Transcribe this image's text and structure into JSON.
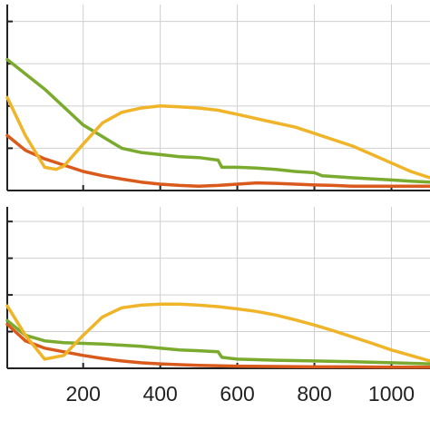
{
  "chart_data": [
    {
      "type": "line",
      "title": "",
      "xlabel": "",
      "ylabel": "",
      "xlim": [
        3,
        1100
      ],
      "ylim": [
        0,
        4.4
      ],
      "x_ticks": [
        200,
        400,
        600,
        800,
        1000
      ],
      "y_gridlines": [
        1,
        2,
        3,
        4
      ],
      "grid": true,
      "series": [
        {
          "color": "#7aab2e",
          "x": [
            3,
            100,
            200,
            300,
            350,
            400,
            450,
            500,
            550,
            560,
            600,
            650,
            700,
            750,
            800,
            820,
            900,
            1000,
            1050,
            1100
          ],
          "y": [
            3.1,
            2.4,
            1.55,
            1.0,
            0.9,
            0.85,
            0.8,
            0.78,
            0.72,
            0.55,
            0.55,
            0.53,
            0.5,
            0.45,
            0.42,
            0.35,
            0.3,
            0.25,
            0.22,
            0.2
          ]
        },
        {
          "color": "#d95a1c",
          "x": [
            3,
            50,
            100,
            150,
            200,
            250,
            300,
            350,
            400,
            450,
            500,
            550,
            600,
            650,
            700,
            750,
            800,
            850,
            900,
            1000,
            1100
          ],
          "y": [
            1.3,
            0.95,
            0.75,
            0.6,
            0.45,
            0.35,
            0.27,
            0.2,
            0.15,
            0.12,
            0.1,
            0.12,
            0.15,
            0.18,
            0.17,
            0.15,
            0.13,
            0.12,
            0.1,
            0.1,
            0.1
          ]
        },
        {
          "color": "#f0b428",
          "x": [
            3,
            50,
            100,
            130,
            150,
            200,
            250,
            300,
            350,
            400,
            450,
            500,
            550,
            600,
            650,
            700,
            750,
            800,
            850,
            900,
            950,
            1000,
            1050,
            1100
          ],
          "y": [
            2.2,
            1.3,
            0.55,
            0.5,
            0.58,
            1.1,
            1.6,
            1.85,
            1.95,
            2.0,
            1.98,
            1.95,
            1.9,
            1.8,
            1.7,
            1.6,
            1.5,
            1.35,
            1.2,
            1.05,
            0.85,
            0.65,
            0.45,
            0.3
          ]
        }
      ]
    },
    {
      "type": "line",
      "title": "",
      "xlabel": "",
      "ylabel": "",
      "xlim": [
        3,
        1100
      ],
      "ylim": [
        0,
        4.4
      ],
      "x_ticks": [
        200,
        400,
        600,
        800,
        1000
      ],
      "x_tick_labels": [
        "200",
        "400",
        "600",
        "800",
        "1000"
      ],
      "y_gridlines": [
        1,
        2,
        3,
        4
      ],
      "grid": true,
      "series": [
        {
          "color": "#7aab2e",
          "x": [
            3,
            50,
            100,
            150,
            200,
            250,
            300,
            350,
            400,
            450,
            500,
            550,
            560,
            600,
            700,
            800,
            900,
            1000,
            1100
          ],
          "y": [
            1.3,
            0.9,
            0.75,
            0.7,
            0.68,
            0.66,
            0.63,
            0.6,
            0.55,
            0.5,
            0.48,
            0.45,
            0.3,
            0.25,
            0.22,
            0.2,
            0.18,
            0.15,
            0.12
          ]
        },
        {
          "color": "#d95a1c",
          "x": [
            3,
            50,
            100,
            150,
            200,
            250,
            300,
            350,
            400,
            450,
            500,
            600,
            700,
            800,
            900,
            1000,
            1100
          ],
          "y": [
            1.2,
            0.75,
            0.55,
            0.45,
            0.35,
            0.27,
            0.2,
            0.15,
            0.12,
            0.1,
            0.08,
            0.06,
            0.05,
            0.04,
            0.04,
            0.03,
            0.03
          ]
        },
        {
          "color": "#f0b428",
          "x": [
            3,
            50,
            100,
            150,
            200,
            250,
            300,
            350,
            400,
            450,
            500,
            550,
            600,
            650,
            700,
            750,
            800,
            850,
            900,
            950,
            1000,
            1050,
            1100
          ],
          "y": [
            1.7,
            0.9,
            0.25,
            0.35,
            0.9,
            1.4,
            1.65,
            1.72,
            1.75,
            1.75,
            1.72,
            1.68,
            1.62,
            1.55,
            1.45,
            1.32,
            1.18,
            1.02,
            0.85,
            0.68,
            0.5,
            0.35,
            0.2
          ]
        }
      ]
    }
  ]
}
